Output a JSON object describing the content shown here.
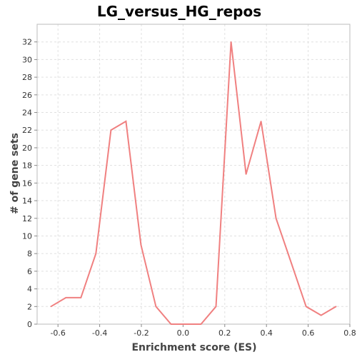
{
  "chart_data": {
    "type": "line",
    "title": "LG_versus_HG_repos",
    "xlabel": "Enrichment score (ES)",
    "ylabel": "# of gene sets",
    "xlim": [
      -0.7,
      0.8
    ],
    "ylim": [
      0,
      34
    ],
    "xticks": [
      "-0.6",
      "-0.4",
      "-0.2",
      "0.0",
      "0.2",
      "0.4",
      "0.6",
      "0.8"
    ],
    "yticks": [
      "0",
      "2",
      "4",
      "6",
      "8",
      "10",
      "12",
      "14",
      "16",
      "18",
      "20",
      "22",
      "24",
      "26",
      "28",
      "30",
      "32"
    ],
    "grid": true,
    "series": [
      {
        "color": "#f08080",
        "points": [
          [
            -0.634,
            2
          ],
          [
            -0.562,
            3
          ],
          [
            -0.49,
            3
          ],
          [
            -0.418,
            8
          ],
          [
            -0.346,
            22
          ],
          [
            -0.274,
            23
          ],
          [
            -0.202,
            9
          ],
          [
            -0.13,
            2
          ],
          [
            -0.058,
            0
          ],
          [
            0.014,
            0
          ],
          [
            0.086,
            0
          ],
          [
            0.158,
            2
          ],
          [
            0.23,
            32
          ],
          [
            0.302,
            17
          ],
          [
            0.374,
            23
          ],
          [
            0.446,
            12
          ],
          [
            0.518,
            7
          ],
          [
            0.59,
            2
          ],
          [
            0.662,
            1
          ],
          [
            0.734,
            2
          ]
        ]
      }
    ]
  }
}
